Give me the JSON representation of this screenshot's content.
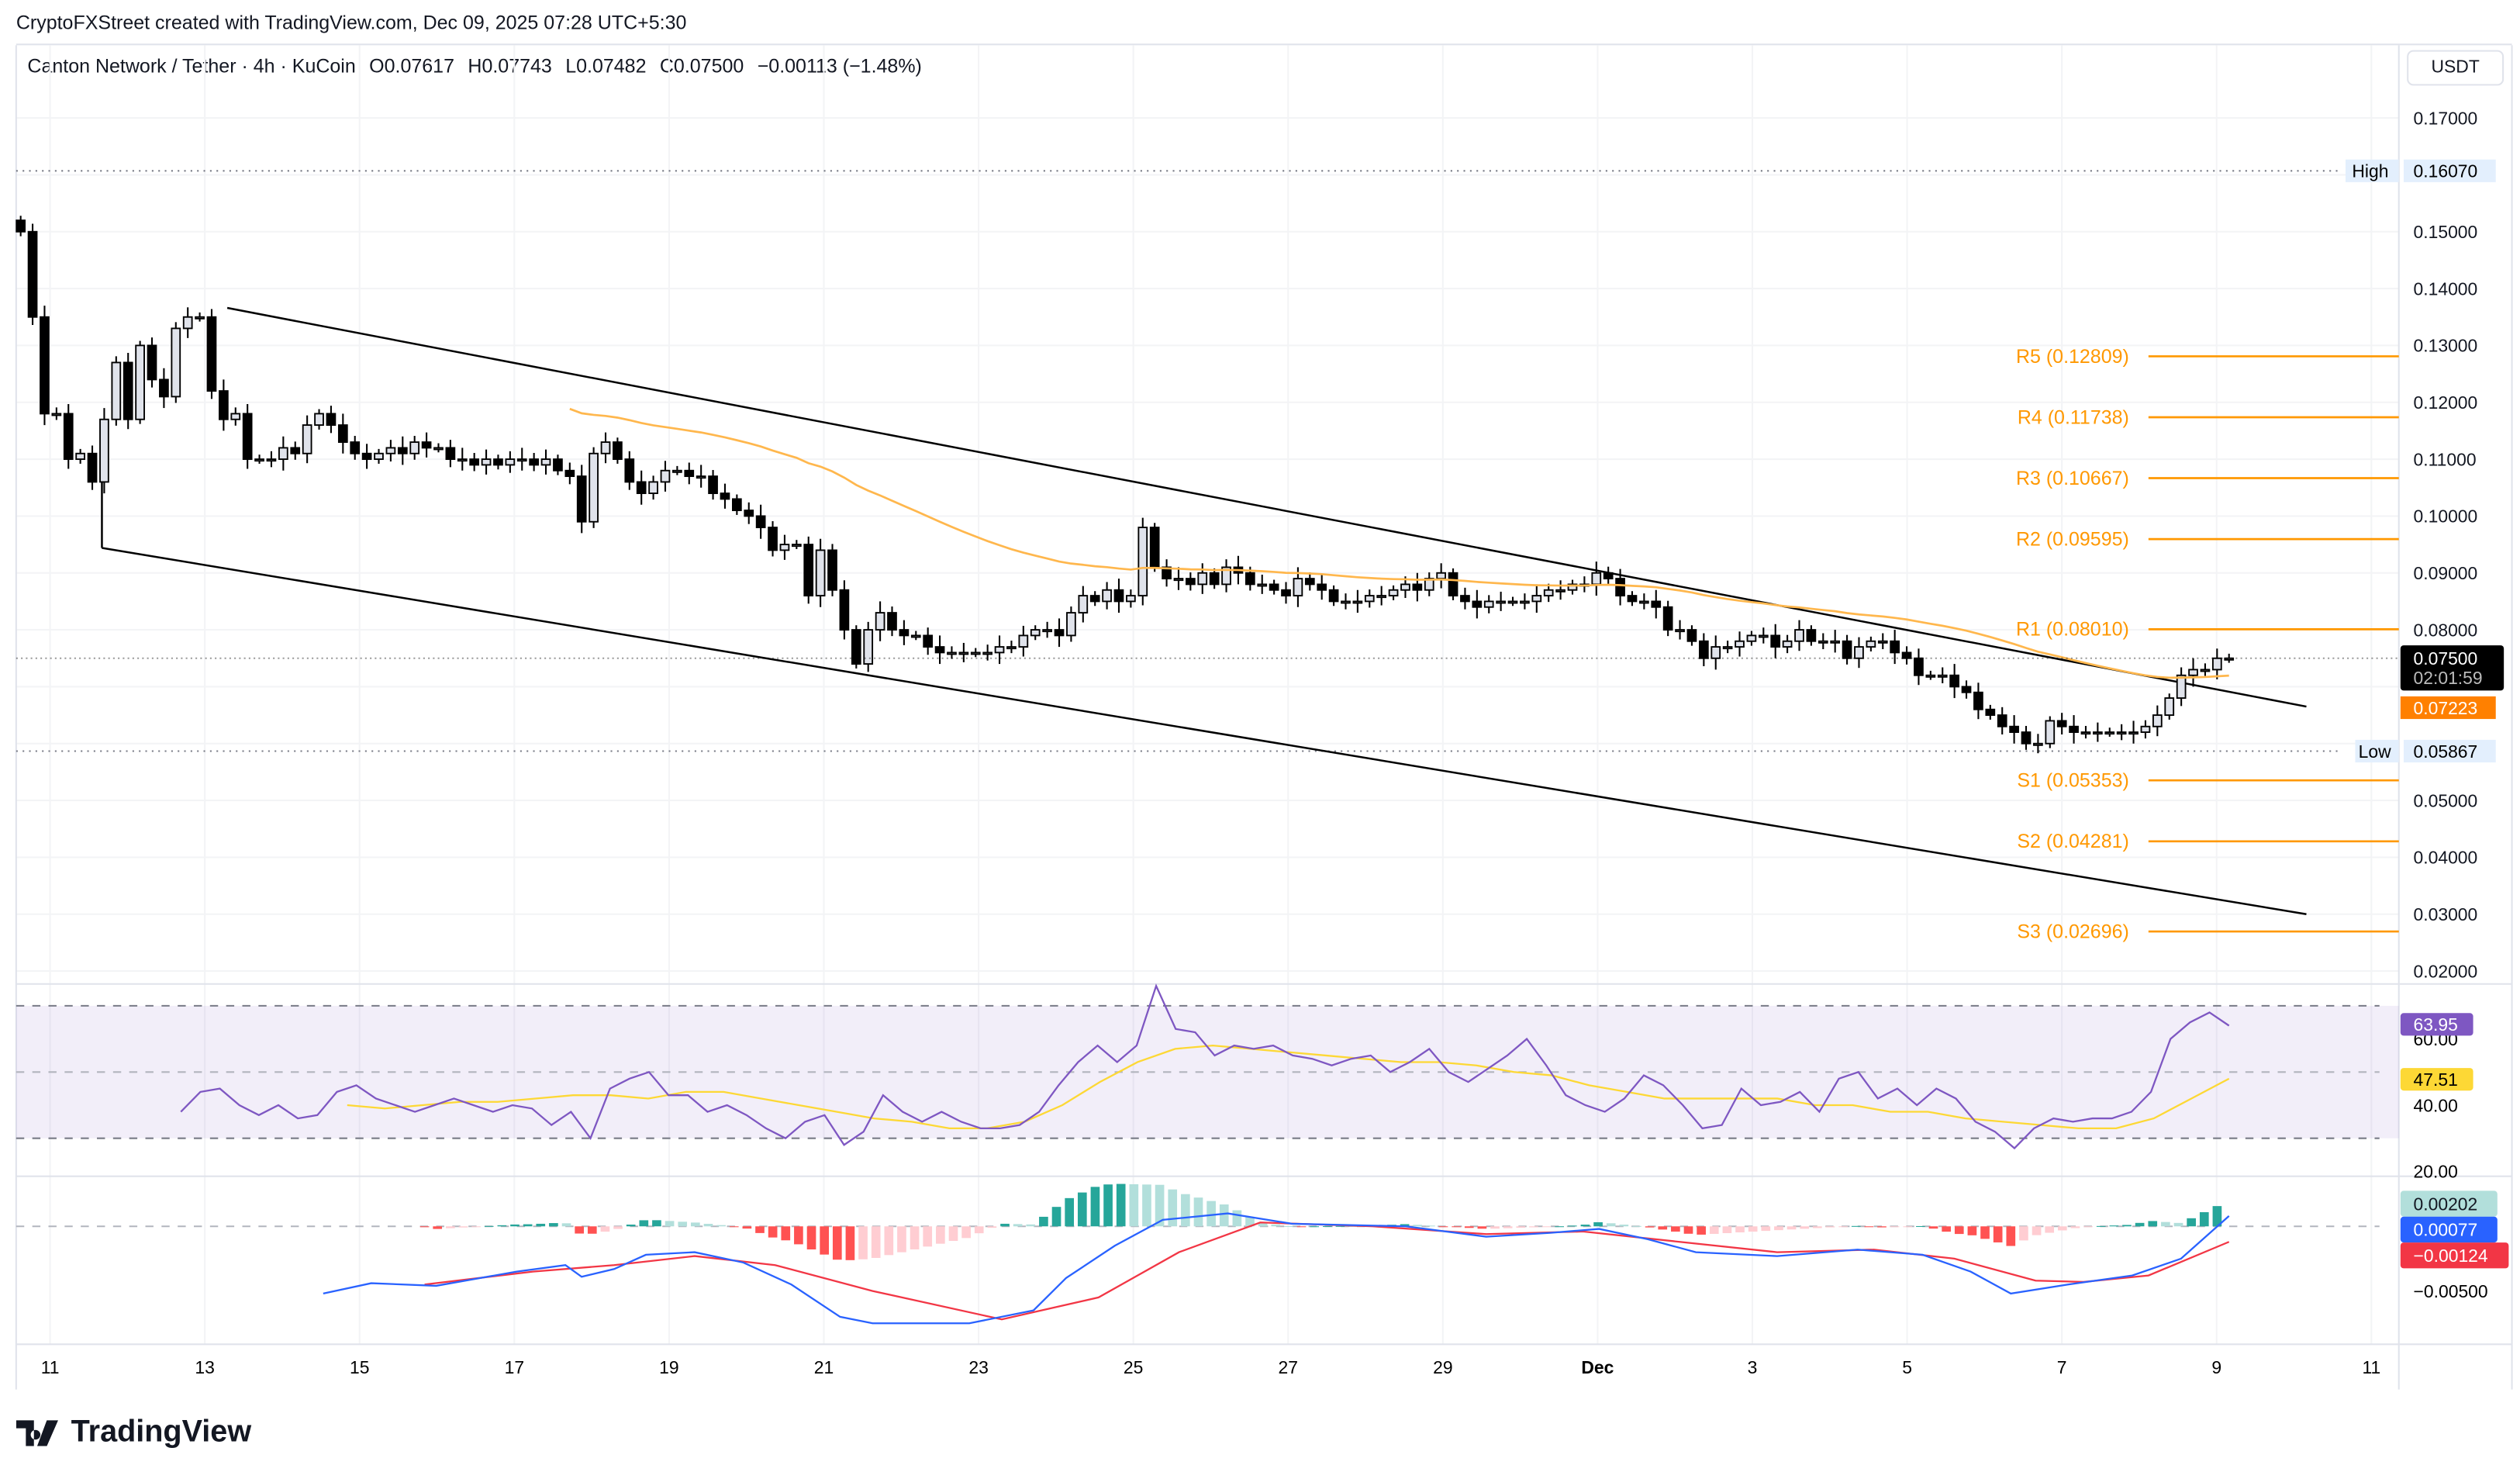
{
  "credit": "CryptoFXStreet created with TradingView.com, Dec 09, 2025 07:28 UTC+5:30",
  "legend": {
    "symbol": "Canton Network / Tether · 4h · KuCoin",
    "open": "O0.07617",
    "high": "H0.07743",
    "low": "L0.07482",
    "close": "C0.07500",
    "change": "−0.00113 (−1.48%)"
  },
  "currency_button": "USDT",
  "logo_text": "TradingView",
  "colors": {
    "up_fill": "#e0e3eb",
    "down_fill": "#000000",
    "pivot": "#ff9800",
    "ema": "#ffb74d",
    "rsi": "#7e57c2",
    "rsi_signal": "#fdd835",
    "macd": "#2962ff",
    "macd_signal": "#f23645",
    "hist_up_strong": "#26a69a",
    "hist_up_weak": "#b2dfdb",
    "hist_down_strong": "#ff5252",
    "hist_down_weak": "#ffcdd2"
  },
  "chart_data": [
    {
      "type": "candlestick",
      "title": "Canton Network / Tether · 4h · KuCoin",
      "price_axis": {
        "ticks": [
          "0.17000",
          "0.15000",
          "0.14000",
          "0.13000",
          "0.12000",
          "0.11000",
          "0.10000",
          "0.09000",
          "0.08000",
          "0.05000",
          "0.04000",
          "0.03000",
          "0.02000"
        ],
        "range": [
          0.02,
          0.17
        ]
      },
      "time_axis": {
        "labels": [
          {
            "t": "11",
            "d": 0
          },
          {
            "t": "13",
            "d": 2
          },
          {
            "t": "15",
            "d": 4
          },
          {
            "t": "17",
            "d": 6
          },
          {
            "t": "19",
            "d": 8
          },
          {
            "t": "21",
            "d": 10
          },
          {
            "t": "23",
            "d": 12
          },
          {
            "t": "25",
            "d": 14
          },
          {
            "t": "27",
            "d": 16
          },
          {
            "t": "29",
            "d": 18
          },
          {
            "t": "Dec",
            "d": 20
          },
          {
            "t": "3",
            "d": 22
          },
          {
            "t": "5",
            "d": 24
          },
          {
            "t": "7",
            "d": 26
          },
          {
            "t": "9",
            "d": 28
          },
          {
            "t": "11",
            "d": 30
          }
        ]
      },
      "first_candle_day": -0.38,
      "last_candle_day": 28.16,
      "closes": [
        0.15,
        0.135,
        0.118,
        0.118,
        0.11,
        0.111,
        0.106,
        0.117,
        0.127,
        0.117,
        0.13,
        0.124,
        0.121,
        0.133,
        0.135,
        0.135,
        0.122,
        0.117,
        0.118,
        0.11,
        0.11,
        0.11,
        0.112,
        0.111,
        0.116,
        0.118,
        0.116,
        0.113,
        0.111,
        0.11,
        0.111,
        0.112,
        0.111,
        0.113,
        0.112,
        0.112,
        0.11,
        0.11,
        0.109,
        0.11,
        0.109,
        0.11,
        0.11,
        0.109,
        0.11,
        0.108,
        0.107,
        0.099,
        0.111,
        0.113,
        0.11,
        0.106,
        0.104,
        0.106,
        0.108,
        0.108,
        0.107,
        0.107,
        0.104,
        0.103,
        0.101,
        0.1,
        0.098,
        0.094,
        0.095,
        0.095,
        0.086,
        0.094,
        0.087,
        0.08,
        0.074,
        0.08,
        0.083,
        0.08,
        0.079,
        0.079,
        0.077,
        0.076,
        0.076,
        0.076,
        0.076,
        0.076,
        0.077,
        0.077,
        0.079,
        0.08,
        0.08,
        0.079,
        0.083,
        0.086,
        0.085,
        0.087,
        0.085,
        0.086,
        0.098,
        0.091,
        0.089,
        0.089,
        0.088,
        0.09,
        0.088,
        0.091,
        0.09,
        0.088,
        0.088,
        0.087,
        0.086,
        0.089,
        0.088,
        0.087,
        0.085,
        0.085,
        0.085,
        0.086,
        0.086,
        0.087,
        0.088,
        0.087,
        0.089,
        0.09,
        0.086,
        0.085,
        0.084,
        0.085,
        0.085,
        0.085,
        0.085,
        0.086,
        0.087,
        0.087,
        0.088,
        0.088,
        0.09,
        0.089,
        0.086,
        0.085,
        0.085,
        0.084,
        0.08,
        0.08,
        0.078,
        0.075,
        0.077,
        0.077,
        0.078,
        0.079,
        0.079,
        0.077,
        0.078,
        0.08,
        0.078,
        0.078,
        0.078,
        0.075,
        0.077,
        0.078,
        0.078,
        0.076,
        0.075,
        0.072,
        0.072,
        0.072,
        0.07,
        0.069,
        0.066,
        0.065,
        0.063,
        0.062,
        0.06,
        0.06,
        0.064,
        0.063,
        0.062,
        0.062,
        0.062,
        0.062,
        0.062,
        0.062,
        0.063,
        0.065,
        0.068,
        0.072,
        0.073,
        0.073,
        0.075,
        0.075
      ],
      "ema_period": 50,
      "channel": {
        "upper": [
          {
            "d": 2.29,
            "p": 0.1366
          },
          {
            "d": 29.16,
            "p": 0.0665
          }
        ],
        "lower": [
          {
            "d": 0.67,
            "p": 0.0944
          },
          {
            "d": 29.16,
            "p": 0.03
          }
        ]
      },
      "high": {
        "label": "High",
        "value": 0.1607,
        "text": "0.16070"
      },
      "low": {
        "label": "Low",
        "value": 0.05867,
        "text": "0.05867"
      },
      "last_price": {
        "text": "0.07500",
        "value": 0.075,
        "countdown": "02:01:59"
      },
      "ema_value": {
        "text": "0.07223",
        "value": 0.07223
      },
      "pivots": [
        {
          "label": "R5 (0.12809)",
          "value": 0.12809
        },
        {
          "label": "R4 (0.11738)",
          "value": 0.11738
        },
        {
          "label": "R3 (0.10667)",
          "value": 0.10667
        },
        {
          "label": "R2 (0.09595)",
          "value": 0.09595
        },
        {
          "label": "R1 (0.08010)",
          "value": 0.0801
        },
        {
          "label": "S1 (0.05353)",
          "value": 0.05353
        },
        {
          "label": "S2 (0.04281)",
          "value": 0.04281
        },
        {
          "label": "S3 (0.02696)",
          "value": 0.02696
        }
      ]
    },
    {
      "type": "line",
      "title": "RSI",
      "ticks": [
        "60.00",
        "40.00",
        "20.00"
      ],
      "bands": [
        70,
        50,
        30
      ],
      "rsi_start_day": 1.69,
      "rsi": [
        38,
        44,
        45,
        40,
        37,
        40,
        36,
        37,
        44,
        46,
        42,
        40,
        38,
        40,
        42,
        40,
        38,
        40,
        39,
        34,
        38,
        30,
        45,
        48,
        50,
        43,
        43,
        38,
        40,
        37,
        33,
        30,
        35,
        37,
        28,
        32,
        43,
        38,
        35,
        38,
        35,
        33,
        33,
        34,
        38,
        46,
        53,
        58,
        53,
        58,
        76,
        63,
        62,
        55,
        58,
        57,
        58,
        55,
        54,
        52,
        54,
        55,
        50,
        53,
        57,
        50,
        47,
        51,
        55,
        60,
        52,
        43,
        40,
        38,
        42,
        49,
        46,
        40,
        33,
        34,
        45,
        40,
        41,
        44,
        38,
        48,
        50,
        42,
        45,
        40,
        45,
        42,
        35,
        32,
        27,
        33,
        36,
        35,
        36,
        36,
        38,
        44,
        60,
        65,
        68,
        64
      ],
      "signal_start_day": 3.84,
      "signal": [
        40,
        39,
        40,
        41,
        41,
        42,
        43,
        43,
        42,
        44,
        44,
        42,
        40,
        38,
        36,
        35,
        33,
        33,
        35,
        40,
        47,
        53,
        57,
        58,
        57,
        56,
        55,
        54,
        53,
        53,
        52,
        50,
        49,
        46,
        44,
        42,
        42,
        42,
        42,
        40,
        40,
        38,
        38,
        36,
        35,
        34,
        33,
        33,
        36,
        42,
        48
      ],
      "rsi_label": "63.95",
      "signal_label": "47.51"
    },
    {
      "type": "line",
      "title": "MACD",
      "ticks": [
        "−0.00500"
      ],
      "unit": 0.001,
      "macd": [
        [
          3.53,
          -5.2
        ],
        [
          4.15,
          -4.4
        ],
        [
          4.99,
          -4.6
        ],
        [
          6.03,
          -3.5
        ],
        [
          6.66,
          -3.0
        ],
        [
          6.87,
          -3.9
        ],
        [
          7.29,
          -3.3
        ],
        [
          7.7,
          -2.2
        ],
        [
          8.33,
          -2.0
        ],
        [
          8.96,
          -2.8
        ],
        [
          9.58,
          -4.5
        ],
        [
          10.21,
          -7.0
        ],
        [
          10.63,
          -7.5
        ],
        [
          11.88,
          -7.5
        ],
        [
          12.71,
          -6.5
        ],
        [
          13.13,
          -4.0
        ],
        [
          13.76,
          -1.5
        ],
        [
          14.38,
          0.5
        ],
        [
          15.22,
          1.0
        ],
        [
          16.05,
          0.2
        ],
        [
          17.52,
          0.0
        ],
        [
          18.56,
          -0.8
        ],
        [
          19.39,
          -0.5
        ],
        [
          20.02,
          -0.2
        ],
        [
          20.65,
          -1.0
        ],
        [
          21.27,
          -2.0
        ],
        [
          22.32,
          -2.3
        ],
        [
          23.36,
          -1.8
        ],
        [
          24.2,
          -2.2
        ],
        [
          24.82,
          -3.5
        ],
        [
          25.34,
          -5.2
        ],
        [
          26.08,
          -4.5
        ],
        [
          26.91,
          -3.8
        ],
        [
          27.54,
          -2.5
        ],
        [
          28.16,
          0.8
        ]
      ],
      "signal": [
        [
          4.84,
          -4.5
        ],
        [
          6.24,
          -3.5
        ],
        [
          7.29,
          -3.0
        ],
        [
          8.33,
          -2.3
        ],
        [
          9.37,
          -3.0
        ],
        [
          10.63,
          -5.0
        ],
        [
          12.3,
          -7.2
        ],
        [
          13.55,
          -5.5
        ],
        [
          14.59,
          -2.0
        ],
        [
          15.64,
          0.3
        ],
        [
          17.1,
          0.0
        ],
        [
          18.56,
          -0.6
        ],
        [
          19.81,
          -0.4
        ],
        [
          21.06,
          -1.2
        ],
        [
          22.32,
          -2.0
        ],
        [
          23.57,
          -1.8
        ],
        [
          24.61,
          -2.5
        ],
        [
          25.66,
          -4.2
        ],
        [
          26.28,
          -4.3
        ],
        [
          27.12,
          -3.8
        ],
        [
          28.16,
          -1.2
        ]
      ],
      "hist_label": "0.00202",
      "macd_label": "0.00077",
      "signal_label": "−0.00124"
    }
  ]
}
